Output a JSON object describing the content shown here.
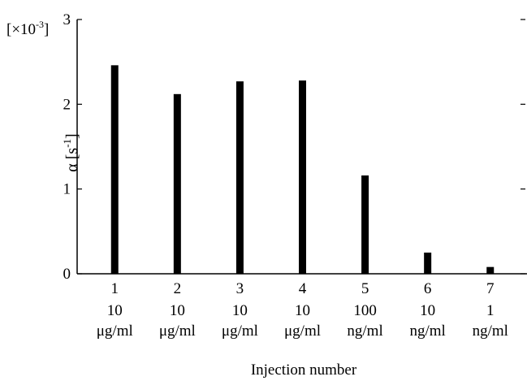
{
  "chart_data": {
    "type": "bar",
    "xlabel": "Injection number",
    "ylabel_symbol": "α",
    "ylabel_unit_open": "[s",
    "ylabel_unit_exp": "-1",
    "ylabel_unit_close": "]",
    "y_multiplier_open": "[×10",
    "y_multiplier_exp": "-3",
    "y_multiplier_close": "]",
    "ylim": [
      0,
      3
    ],
    "yticks": [
      0,
      1,
      2,
      3
    ],
    "ytick_labels": [
      "0",
      "1",
      "2",
      "3"
    ],
    "categories": [
      "1",
      "2",
      "3",
      "4",
      "5",
      "6",
      "7"
    ],
    "concentrations": [
      {
        "value": "10",
        "unit": "μg/ml"
      },
      {
        "value": "10",
        "unit": "μg/ml"
      },
      {
        "value": "10",
        "unit": "μg/ml"
      },
      {
        "value": "10",
        "unit": "μg/ml"
      },
      {
        "value": "100",
        "unit": "ng/ml"
      },
      {
        "value": "10",
        "unit": "ng/ml"
      },
      {
        "value": "1",
        "unit": "ng/ml"
      }
    ],
    "values": [
      2.46,
      2.12,
      2.27,
      2.28,
      1.16,
      0.25,
      0.08
    ],
    "bar_color": "#000000",
    "grid": false
  }
}
